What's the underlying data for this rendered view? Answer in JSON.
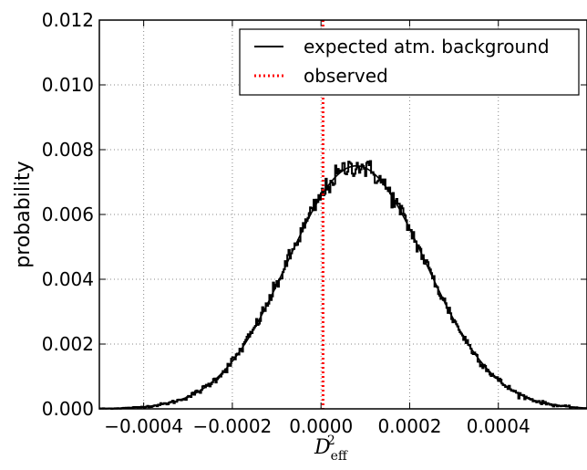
{
  "chart_data": {
    "type": "line",
    "xlabel_main": "D",
    "xlabel_sub": "eff",
    "xlabel_sup": "2",
    "ylabel": "probability",
    "xlim": [
      -0.0005,
      0.0006
    ],
    "ylim": [
      0.0,
      0.012
    ],
    "x_ticks": [
      {
        "value": -0.0004,
        "label": "−0.0004"
      },
      {
        "value": -0.0002,
        "label": "−0.0002"
      },
      {
        "value": 0.0,
        "label": "0.0000"
      },
      {
        "value": 0.0002,
        "label": "0.0002"
      },
      {
        "value": 0.0004,
        "label": "0.0004"
      }
    ],
    "y_ticks": [
      {
        "value": 0.0,
        "label": "0.000"
      },
      {
        "value": 0.002,
        "label": "0.002"
      },
      {
        "value": 0.004,
        "label": "0.004"
      },
      {
        "value": 0.006,
        "label": "0.006"
      },
      {
        "value": 0.008,
        "label": "0.008"
      },
      {
        "value": 0.01,
        "label": "0.010"
      },
      {
        "value": 0.012,
        "label": "0.012"
      }
    ],
    "grid": true,
    "legend_position": "top-right",
    "series": [
      {
        "name": "expected atm. background",
        "kind": "gaussian-fit-with-noisy-histogram",
        "color": "#000000",
        "style": "solid",
        "mean": 8e-05,
        "sigma": 0.000155,
        "peak": 0.0075,
        "histogram": {
          "x_start": -0.0005,
          "x_end": 0.00058,
          "bin_count": 400,
          "approx_values_at": [
            {
              "x": -0.0004,
              "y": 0.0001
            },
            {
              "x": -0.0003,
              "y": 0.001
            },
            {
              "x": -0.0002,
              "y": 0.0029
            },
            {
              "x": -0.0001,
              "y": 0.0055
            },
            {
              "x": 0.0,
              "y": 0.0074
            },
            {
              "x": 8e-05,
              "y": 0.0076
            },
            {
              "x": 0.0002,
              "y": 0.0055
            },
            {
              "x": 0.0003,
              "y": 0.0033
            },
            {
              "x": 0.0004,
              "y": 0.0012
            },
            {
              "x": 0.0005,
              "y": 0.0004
            }
          ]
        }
      },
      {
        "name": "observed",
        "kind": "vertical-line",
        "color": "#ff0000",
        "style": "dotted",
        "x": 4.5e-06
      }
    ]
  }
}
